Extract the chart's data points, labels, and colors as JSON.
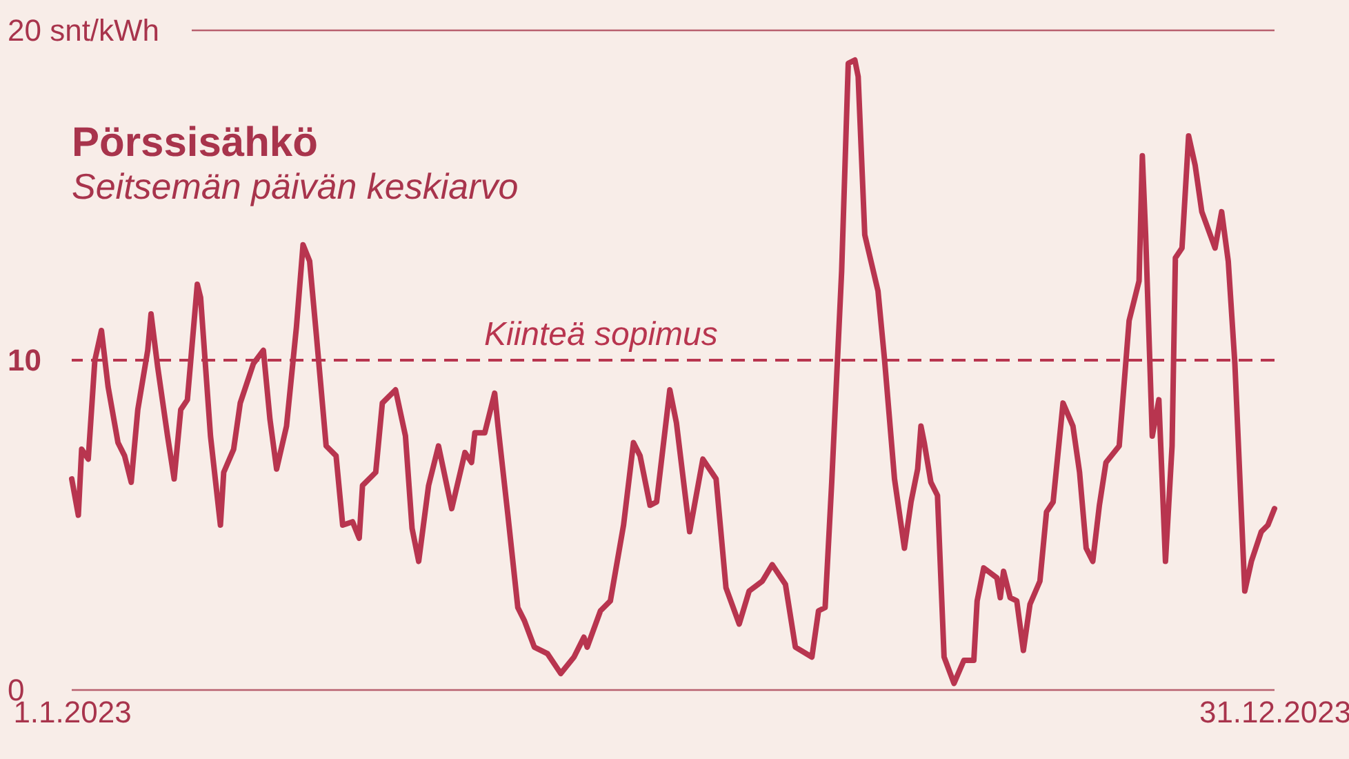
{
  "chart_data": {
    "type": "line",
    "title": "Pörssisähkö",
    "subtitle": "Seitsemän päivän keskiarvo",
    "x": [
      "2023-01-01",
      "2023-01-03",
      "2023-01-04",
      "2023-01-06",
      "2023-01-08",
      "2023-01-10",
      "2023-01-12",
      "2023-01-15",
      "2023-01-17",
      "2023-01-19",
      "2023-01-21",
      "2023-01-24",
      "2023-01-25",
      "2023-01-27",
      "2023-01-30",
      "2023-02-01",
      "2023-02-03",
      "2023-02-05",
      "2023-02-08",
      "2023-02-09",
      "2023-02-12",
      "2023-02-15",
      "2023-02-16",
      "2023-02-19",
      "2023-02-21",
      "2023-02-25",
      "2023-02-28",
      "2023-03-02",
      "2023-03-04",
      "2023-03-07",
      "2023-03-10",
      "2023-03-12",
      "2023-03-14",
      "2023-03-16",
      "2023-03-19",
      "2023-03-22",
      "2023-03-24",
      "2023-03-27",
      "2023-03-29",
      "2023-03-30",
      "2023-04-03",
      "2023-04-05",
      "2023-04-09",
      "2023-04-12",
      "2023-04-14",
      "2023-04-16",
      "2023-04-19",
      "2023-04-22",
      "2023-04-26",
      "2023-04-30",
      "2023-05-02",
      "2023-05-03",
      "2023-05-06",
      "2023-05-09",
      "2023-05-10",
      "2023-05-13",
      "2023-05-16",
      "2023-05-18",
      "2023-05-21",
      "2023-05-25",
      "2023-05-29",
      "2023-06-02",
      "2023-06-05",
      "2023-06-06",
      "2023-06-10",
      "2023-06-13",
      "2023-06-17",
      "2023-06-20",
      "2023-06-22",
      "2023-06-25",
      "2023-06-27",
      "2023-07-01",
      "2023-07-03",
      "2023-07-07",
      "2023-07-11",
      "2023-07-15",
      "2023-07-18",
      "2023-07-22",
      "2023-07-25",
      "2023-07-29",
      "2023-08-01",
      "2023-08-05",
      "2023-08-08",
      "2023-08-13",
      "2023-08-15",
      "2023-08-17",
      "2023-08-19",
      "2023-08-22",
      "2023-08-24",
      "2023-08-26",
      "2023-08-27",
      "2023-08-29",
      "2023-09-02",
      "2023-09-04",
      "2023-09-07",
      "2023-09-10",
      "2023-09-12",
      "2023-09-14",
      "2023-09-15",
      "2023-09-16",
      "2023-09-18",
      "2023-09-20",
      "2023-09-22",
      "2023-09-25",
      "2023-09-28",
      "2023-10-01",
      "2023-10-02",
      "2023-10-04",
      "2023-10-08",
      "2023-10-09",
      "2023-10-10",
      "2023-10-12",
      "2023-10-14",
      "2023-10-16",
      "2023-10-18",
      "2023-10-21",
      "2023-10-23",
      "2023-10-25",
      "2023-10-28",
      "2023-10-31",
      "2023-11-02",
      "2023-11-04",
      "2023-11-06",
      "2023-11-08",
      "2023-11-10",
      "2023-11-14",
      "2023-11-17",
      "2023-11-20",
      "2023-11-21",
      "2023-11-22",
      "2023-11-24",
      "2023-11-26",
      "2023-11-28",
      "2023-11-30",
      "2023-12-01",
      "2023-12-03",
      "2023-12-05",
      "2023-12-07",
      "2023-12-09",
      "2023-12-13",
      "2023-12-15",
      "2023-12-17",
      "2023-12-19",
      "2023-12-22",
      "2023-12-24",
      "2023-12-27",
      "2023-12-29",
      "2023-12-31"
    ],
    "series": [
      {
        "color": "#b8354f",
        "values": [
          6.4,
          5.3,
          7.3,
          7.0,
          10.0,
          10.9,
          9.2,
          7.5,
          7.1,
          6.3,
          8.5,
          10.3,
          11.4,
          9.8,
          7.7,
          6.4,
          8.5,
          8.8,
          12.3,
          11.9,
          7.7,
          5.0,
          6.6,
          7.3,
          8.7,
          9.9,
          10.3,
          8.2,
          6.7,
          8.0,
          11.0,
          13.5,
          13.0,
          10.8,
          7.4,
          7.1,
          5.0,
          5.1,
          4.6,
          6.2,
          6.6,
          8.7,
          9.1,
          7.7,
          4.9,
          3.9,
          6.2,
          7.4,
          5.5,
          7.2,
          6.9,
          7.8,
          7.8,
          9.0,
          8.0,
          5.3,
          2.5,
          2.1,
          1.3,
          1.1,
          0.5,
          1.0,
          1.6,
          1.3,
          2.4,
          2.7,
          5.0,
          7.5,
          7.1,
          5.6,
          5.7,
          9.1,
          8.1,
          4.8,
          7.0,
          6.4,
          3.1,
          2.0,
          3.0,
          3.3,
          3.8,
          3.2,
          1.3,
          1.0,
          2.4,
          2.5,
          6.3,
          12.7,
          19.0,
          19.1,
          18.6,
          13.8,
          12.1,
          10.0,
          6.4,
          4.3,
          5.7,
          6.7,
          8.0,
          7.5,
          6.3,
          5.9,
          1.0,
          0.2,
          0.9,
          0.9,
          2.7,
          3.7,
          3.4,
          2.8,
          3.6,
          2.8,
          2.7,
          1.2,
          2.6,
          3.3,
          5.4,
          5.7,
          8.7,
          8.0,
          6.6,
          4.3,
          3.9,
          5.6,
          6.9,
          7.4,
          11.2,
          12.4,
          16.2,
          13.8,
          7.7,
          8.8,
          3.9,
          7.4,
          13.1,
          13.4,
          16.8,
          15.9,
          14.5,
          13.4,
          14.5,
          13.0,
          9.9,
          3.0,
          3.9,
          4.8,
          5.0,
          5.5
        ]
      }
    ],
    "xlim": [
      "2023-01-01",
      "2023-12-31"
    ],
    "xticks": [
      {
        "value": "2023-01-01",
        "label": "1.1.2023"
      },
      {
        "value": "2023-12-31",
        "label": "31.12.2023"
      }
    ],
    "ylim": [
      0,
      20
    ],
    "yticks": [
      0,
      10,
      {
        "value": 20,
        "label": "20 snt/kWh"
      }
    ],
    "grid": false,
    "ref_lines": [
      {
        "axis": "y",
        "value": 10,
        "label": "Kiinteä sopimus",
        "line_style": "dashed",
        "color": "#b8354f"
      }
    ],
    "line_style": "solid"
  }
}
